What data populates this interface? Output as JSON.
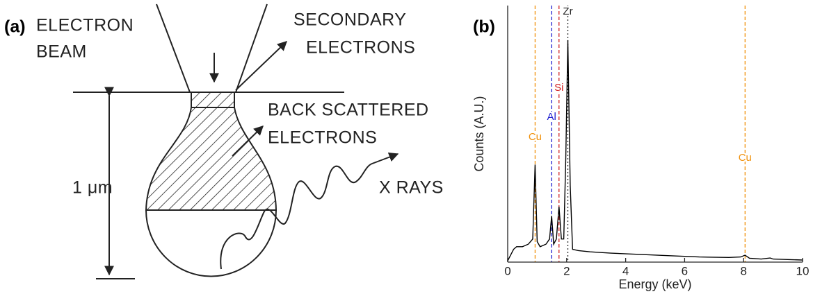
{
  "panel_a": {
    "label": "(a)",
    "texts": {
      "electron_beam": [
        "ELECTRON",
        "BEAM"
      ],
      "secondary": [
        "SECONDARY",
        "ELECTRONS"
      ],
      "backscattered": [
        "BACK SCATTERED",
        "ELECTRONS"
      ],
      "scale": "1 μm",
      "xrays": "X RAYS"
    }
  },
  "chart_data": {
    "type": "line",
    "panel_label": "(b)",
    "x_label": "Energy (keV)",
    "y_label": "Counts (A.U.)",
    "x": [
      0,
      0.2,
      0.3,
      0.5,
      0.7,
      0.85,
      0.93,
      1.0,
      1.1,
      1.3,
      1.42,
      1.49,
      1.56,
      1.65,
      1.74,
      1.82,
      1.9,
      1.97,
      2.04,
      2.12,
      2.2,
      2.4,
      2.8,
      3.5,
      4.5,
      5.5,
      6.5,
      7.5,
      7.9,
      8.05,
      8.2,
      8.6,
      8.9,
      9.0,
      9.5,
      10
    ],
    "values": [
      0.5,
      5,
      6,
      6,
      7,
      9,
      38,
      8,
      6,
      7,
      9,
      18,
      7,
      9,
      21.6,
      9,
      9,
      40,
      86.5,
      30,
      5,
      4.5,
      4,
      3.5,
      3,
      2.5,
      2,
      1.8,
      2,
      2.7,
      1.5,
      1.2,
      1.6,
      1.2,
      1,
      0.8
    ],
    "color": "#000000",
    "xlim": [
      0,
      10
    ],
    "xticks": [
      0,
      2,
      4,
      6,
      8,
      10
    ],
    "ylim": [
      0,
      100
    ],
    "annotations": [
      {
        "text": "Cu",
        "x": 0.93,
        "color": "#f0900a"
      },
      {
        "text": "Al",
        "x": 1.49,
        "color": "#2020d0"
      },
      {
        "text": "Si",
        "x": 1.74,
        "color": "#d02020"
      },
      {
        "text": "Zr",
        "x": 2.04,
        "color": "#222222"
      },
      {
        "text": "Cu",
        "x": 8.05,
        "color": "#f0900a"
      }
    ]
  }
}
